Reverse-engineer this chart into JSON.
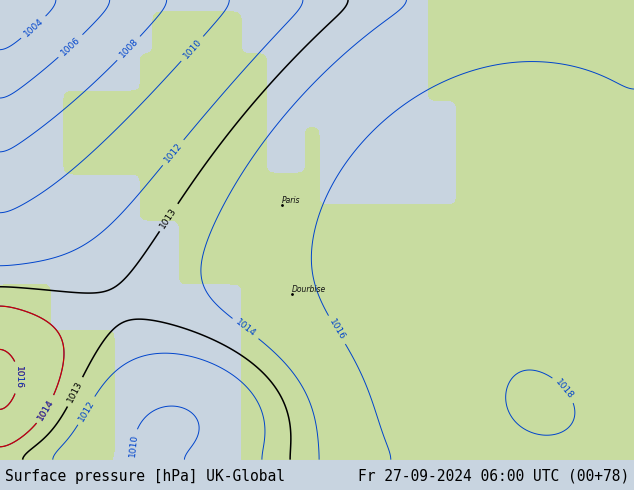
{
  "title_left": "Surface pressure [hPa] UK-Global",
  "title_right": "Fr 27-09-2024 06:00 UTC (00+78)",
  "background_color": "#c8d4e0",
  "land_color": "#c8dca0",
  "sea_color": "#c0ccdc",
  "title_bg_color": "#d8d8d8",
  "title_font_size": 10.5,
  "blue_color": "#0044cc",
  "red_color": "#cc0000",
  "black_color": "#000000",
  "label_fontsize": 6.5,
  "contour_linewidth": 0.7
}
